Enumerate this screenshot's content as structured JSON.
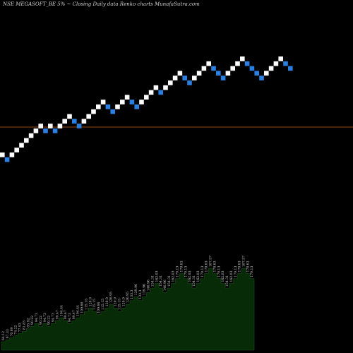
{
  "chart_data": {
    "type": "renko",
    "title": "NSE MEGASOFT_BE 5% ~  Closing Daily data  Renko  charts MunafaSutra.com",
    "colors": {
      "background": "#000000",
      "up_brick": "#ffffff",
      "down_brick": "#2a7fe0",
      "reference_line": "#c8641e",
      "area_fill": "#062b06"
    },
    "bricks": [
      "up",
      "down",
      "up",
      "up",
      "up",
      "up",
      "up",
      "up",
      "up",
      "down",
      "up",
      "down",
      "up",
      "up",
      "up",
      "down",
      "down",
      "up",
      "up",
      "up",
      "up",
      "up",
      "down",
      "down",
      "up",
      "up",
      "up",
      "down",
      "down",
      "up",
      "up",
      "up",
      "up",
      "down",
      "up",
      "up",
      "up",
      "up",
      "down",
      "down",
      "up",
      "up",
      "up",
      "up",
      "down",
      "down",
      "down",
      "up",
      "up",
      "up",
      "up",
      "down",
      "down",
      "down",
      "down",
      "up",
      "up",
      "up",
      "up",
      "down",
      "down"
    ],
    "bar_values": [
      "64.12",
      "67.33",
      "70.69",
      "74.22",
      "77.93",
      "81.83",
      "85.92",
      "90.22",
      "94.73",
      "90.22",
      "94.73",
      "90.22",
      "94.73",
      "99.47",
      "104.44",
      "99.47",
      "94.73",
      "99.47",
      "104.44",
      "109.66",
      "115.15",
      "120.9",
      "115.15",
      "109.66",
      "115.15",
      "120.9",
      "126.95",
      "120.9",
      "115.15",
      "120.9",
      "126.95",
      "133.3",
      "139.96",
      "133.3",
      "139.96",
      "146.96",
      "154.31",
      "162.03",
      "154.31",
      "146.96",
      "154.31",
      "162.03",
      "170.13",
      "178.63",
      "170.13",
      "162.03",
      "154.31",
      "162.03",
      "170.13",
      "178.63",
      "187.57",
      "178.63",
      "170.13",
      "162.03",
      "154.31",
      "162.03",
      "170.13",
      "178.63",
      "187.57",
      "178.63",
      "170.13"
    ]
  }
}
